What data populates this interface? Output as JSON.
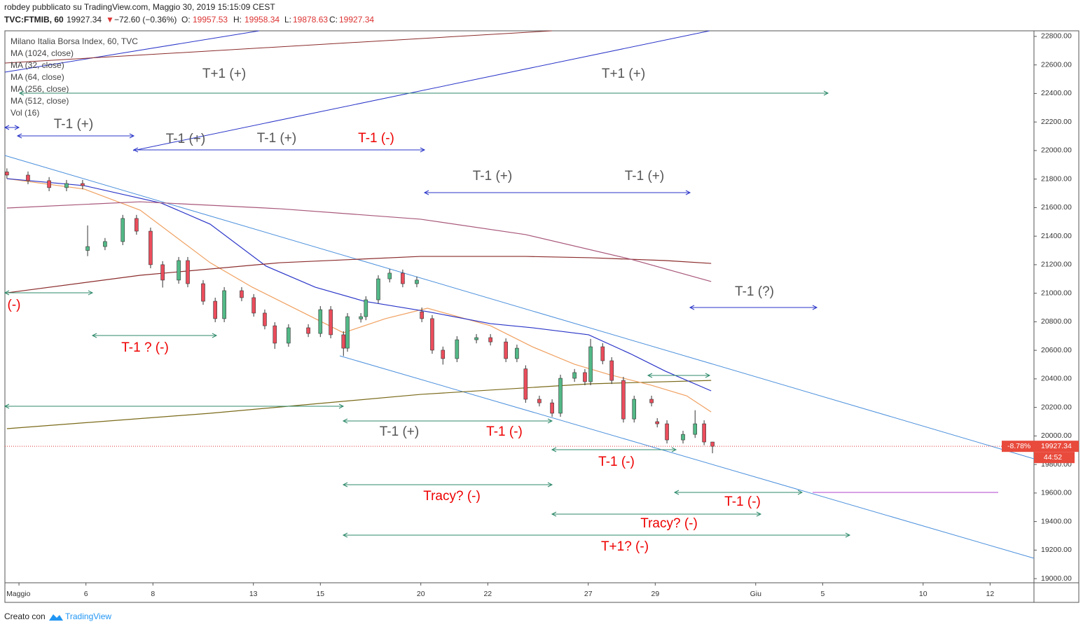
{
  "header": {
    "byline": "robdey pubblicato su TradingView.com, Maggio 30, 2019 15:15:09 CEST",
    "symbol": "TVC:FTMIB, 60",
    "last": "19927.34",
    "change_arrow": "▼",
    "change": "−72.60 (−0.36%)",
    "open_label": "O:",
    "open": "19957.53",
    "high_label": "H:",
    "high": "19958.34",
    "low_label": "L:",
    "low": "19878.63",
    "close_label": "C:",
    "close": "19927.34"
  },
  "chart_data": {
    "type": "candlestick",
    "title": "Milano Italia Borsa Index, 60, TVC",
    "volume_indicator": "Vol (16)",
    "up_color": "#53b987",
    "down_color": "#eb4d5c",
    "x": [
      -0.36,
      0.27,
      0.9,
      1.42,
      1.9,
      2.05,
      2.57,
      3.1,
      3.51,
      3.93,
      4.29,
      4.77,
      5.04,
      5.5,
      5.86,
      6.13,
      6.65,
      7.01,
      7.34,
      7.64,
      8.05,
      8.64,
      9.0,
      9.31,
      9.69,
      9.81,
      10.21,
      10.36,
      10.73,
      11.07,
      11.46,
      11.88,
      12.03,
      12.34,
      12.66,
      13.08,
      13.66,
      14.08,
      14.54,
      14.87,
      15.13,
      15.54,
      15.92,
      16.17,
      16.59,
      16.9,
      17.07,
      17.43,
      17.7,
      18.05,
      18.37,
      18.89,
      19.06,
      19.35,
      19.83,
      20.19,
      20.46,
      20.71
    ],
    "open": [
      21850,
      21828,
      21789,
      21740,
      21769,
      21300,
      21327,
      21362,
      21524,
      21435,
      21200,
      21092,
      21229,
      21067,
      20944,
      20822,
      21018,
      20969,
      20861,
      20772,
      20650,
      20758,
      20718,
      20885,
      20709,
      20615,
      20820,
      20836,
      20954,
      21101,
      21141,
      21067,
      20870,
      20822,
      20601,
      20542,
      20674,
      20689,
      20659,
      20542,
      20470,
      20257,
      20232,
      20159,
      20404,
      20444,
      20380,
      20625,
      20527,
      20389,
      20119,
      20257,
      20100,
      20085,
      19972,
      20011,
      20085,
      19957.53
    ],
    "high": [
      21875,
      21853,
      21814,
      21794,
      21794,
      21475,
      21387,
      21549,
      21549,
      21460,
      21225,
      21254,
      21254,
      21092,
      20969,
      21043,
      21043,
      20994,
      20886,
      20797,
      20783,
      20783,
      20910,
      20910,
      20734,
      20861,
      20861,
      20979,
      21126,
      21170,
      21166,
      21117,
      20900,
      20847,
      20626,
      20699,
      20714,
      20714,
      20684,
      20640,
      20495,
      20282,
      20257,
      20429,
      20469,
      20469,
      20680,
      20650,
      20552,
      20414,
      20282,
      20282,
      20125,
      20110,
      20036,
      20180,
      20110,
      19958.34
    ],
    "low": [
      21803,
      21764,
      21715,
      21715,
      21729,
      21260,
      21302,
      21337,
      21410,
      21175,
      21040,
      21067,
      21042,
      20919,
      20797,
      20797,
      20944,
      20836,
      20747,
      20610,
      20625,
      20693,
      20693,
      20684,
      20560,
      20590,
      20795,
      20811,
      20929,
      21076,
      21042,
      21042,
      20797,
      20576,
      20500,
      20517,
      20649,
      20634,
      20517,
      20517,
      20232,
      20207,
      20134,
      20134,
      20379,
      20355,
      20355,
      20502,
      20364,
      20094,
      20094,
      20207,
      20060,
      19947,
      19947,
      19986,
      19935,
      19878.63
    ],
    "close": [
      21828,
      21789,
      21740,
      21769,
      21754,
      21327,
      21362,
      21524,
      21435,
      21200,
      21092,
      21229,
      21067,
      20944,
      20822,
      21018,
      20969,
      20861,
      20772,
      20650,
      20758,
      20718,
      20885,
      20709,
      20615,
      20836,
      20836,
      20954,
      21101,
      21141,
      21067,
      21092,
      20822,
      20601,
      20542,
      20674,
      20689,
      20659,
      20542,
      20615,
      20257,
      20232,
      20159,
      20404,
      20444,
      20380,
      20625,
      20527,
      20389,
      20119,
      20257,
      20232,
      20085,
      19972,
      20011,
      20085,
      19957.53,
      19927.34
    ],
    "series": [
      {
        "name": "MA (1024, close)",
        "color": "#7a6a1a",
        "x": [
          -0.36,
          5.71,
          11.99,
          17.05,
          20.67
        ],
        "values": [
          20051,
          20159,
          20291,
          20365,
          20389
        ]
      },
      {
        "name": "MA (32, close)",
        "color": "#f0a060",
        "x": [
          -0.36,
          1.95,
          3.62,
          5.71,
          6.97,
          8.43,
          9.69,
          10.94,
          12.2,
          14.08,
          15.33,
          16.59,
          17.64,
          18.89,
          19.94,
          20.67
        ],
        "values": [
          21803,
          21730,
          21582,
          21214,
          21042,
          20871,
          20723,
          20822,
          20895,
          20772,
          20625,
          20502,
          20429,
          20355,
          20281,
          20168
        ]
      },
      {
        "name": "MA (64, close)",
        "color": "#2a35c8",
        "x": [
          -0.36,
          1.95,
          4.25,
          5.71,
          7.38,
          8.85,
          10.31,
          12.2,
          14.08,
          15.33,
          17.01,
          18.26,
          19.31,
          20.67
        ],
        "values": [
          21803,
          21754,
          21632,
          21484,
          21190,
          21042,
          20944,
          20871,
          20787,
          20758,
          20709,
          20576,
          20453,
          20316
        ]
      },
      {
        "name": "MA (256, close)",
        "color": "#8b2b2b",
        "x": [
          -0.36,
          3.62,
          7.8,
          11.99,
          15.13,
          17.05,
          19.31,
          20.67
        ],
        "values": [
          21003,
          21126,
          21214,
          21258,
          21258,
          21249,
          21229,
          21209
        ]
      },
      {
        "name": "MA (512, close)",
        "color": "#a8577a",
        "x": [
          -0.36,
          3.62,
          7.8,
          11.99,
          15.13,
          18.26,
          20.67
        ],
        "values": [
          21597,
          21641,
          21592,
          21519,
          21411,
          21239,
          21082
        ]
      }
    ],
    "xlim": [
      -0.42,
      30.31
    ],
    "ylim": [
      18971,
      22839
    ],
    "xticks": [
      {
        "value": 0,
        "label": "Maggio"
      },
      {
        "value": 2,
        "label": "6"
      },
      {
        "value": 4,
        "label": "8"
      },
      {
        "value": 7,
        "label": "13"
      },
      {
        "value": 9,
        "label": "15"
      },
      {
        "value": 12,
        "label": "20"
      },
      {
        "value": 14,
        "label": "22"
      },
      {
        "value": 17,
        "label": "27"
      },
      {
        "value": 19,
        "label": "29"
      },
      {
        "value": 22,
        "label": "Giu"
      },
      {
        "value": 24,
        "label": "5"
      },
      {
        "value": 27,
        "label": "10"
      },
      {
        "value": 29,
        "label": "12"
      }
    ],
    "yticks": [
      {
        "value": 19000,
        "label": "19000.00"
      },
      {
        "value": 19200,
        "label": "19200.00"
      },
      {
        "value": 19400,
        "label": "19400.00"
      },
      {
        "value": 19600,
        "label": "19600.00"
      },
      {
        "value": 19800,
        "label": "19800.00"
      },
      {
        "value": 20000,
        "label": "20000.00"
      },
      {
        "value": 20200,
        "label": "20200.00"
      },
      {
        "value": 20400,
        "label": "20400.00"
      },
      {
        "value": 20600,
        "label": "20600.00"
      },
      {
        "value": 20800,
        "label": "20800.00"
      },
      {
        "value": 21000,
        "label": "21000.00"
      },
      {
        "value": 21200,
        "label": "21200.00"
      },
      {
        "value": 21400,
        "label": "21400.00"
      },
      {
        "value": 21600,
        "label": "21600.00"
      },
      {
        "value": 21800,
        "label": "21800.00"
      },
      {
        "value": 22000,
        "label": "22000.00"
      },
      {
        "value": 22200,
        "label": "22200.00"
      },
      {
        "value": 22400,
        "label": "22400.00"
      },
      {
        "value": 22600,
        "label": "22600.00"
      },
      {
        "value": 22800,
        "label": "22800.00"
      }
    ],
    "grid": false,
    "last_price": 19927.34,
    "price_change_label": "-8.78%",
    "countdown": "44:52",
    "annotations": [
      "T+1 (+)",
      "T+1 (+)",
      "T-1 (+)",
      "T-1 (+)",
      "T-1 (+)",
      "T-1 (-)",
      "T-1 (+)",
      "T-1 (+)",
      "(-)",
      "T-1 (?)",
      "T-1 ? (-)",
      "T-1 (+)",
      "T-1 (-)",
      "T-1 (-)",
      "Tracy? (-)",
      "T-1 (-)",
      "Tracy? (-)",
      "T+1? (-)"
    ]
  },
  "footer": {
    "created_with": "Creato con",
    "brand": "TradingView"
  }
}
